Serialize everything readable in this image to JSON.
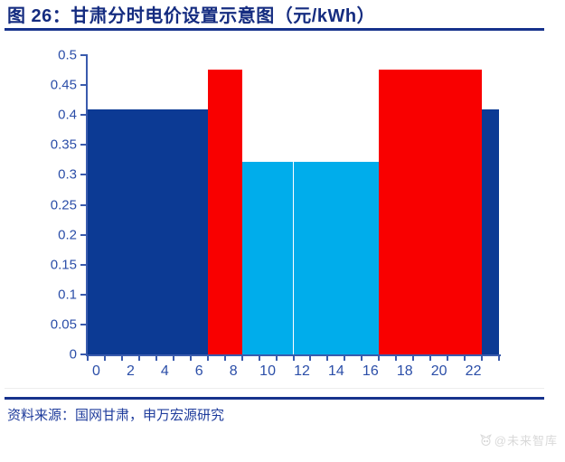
{
  "header": {
    "title": "图 26：甘肃分时电价设置示意图（元/kWh）"
  },
  "chart_data": {
    "type": "bar",
    "title": "甘肃分时电价设置示意图",
    "unit": "元/kWh",
    "x": [
      0,
      1,
      2,
      3,
      4,
      5,
      6,
      7,
      8,
      9,
      10,
      11,
      12,
      13,
      14,
      15,
      16,
      17,
      18,
      19,
      20,
      21,
      22,
      23
    ],
    "values": [
      0.41,
      0.41,
      0.41,
      0.41,
      0.41,
      0.41,
      0.41,
      0.476,
      0.476,
      0.322,
      0.322,
      0.322,
      0.322,
      0.322,
      0.322,
      0.322,
      0.322,
      0.476,
      0.476,
      0.476,
      0.476,
      0.476,
      0.476,
      0.41
    ],
    "colors": [
      "#0c3a94",
      "#0c3a94",
      "#0c3a94",
      "#0c3a94",
      "#0c3a94",
      "#0c3a94",
      "#0c3a94",
      "#f90000",
      "#f90000",
      "#00adeb",
      "#00adeb",
      "#00adeb",
      "#00adeb",
      "#00adeb",
      "#00adeb",
      "#00adeb",
      "#00adeb",
      "#f90000",
      "#f90000",
      "#f90000",
      "#f90000",
      "#f90000",
      "#f90000",
      "#0c3a94"
    ],
    "segments": [
      {
        "hours": "0-6",
        "value": 0.41,
        "color": "#0c3a94"
      },
      {
        "hours": "7-8",
        "value": 0.476,
        "color": "#f90000"
      },
      {
        "hours": "9-16",
        "value": 0.322,
        "color": "#00adeb"
      },
      {
        "hours": "17-22",
        "value": 0.476,
        "color": "#f90000"
      },
      {
        "hours": "23",
        "value": 0.41,
        "color": "#0c3a94"
      }
    ],
    "ylim": [
      0,
      0.5
    ],
    "ytick_labels": [
      "0",
      "0.05",
      "0.1",
      "0.15",
      "0.2",
      "0.25",
      "0.3",
      "0.35",
      "0.4",
      "0.45",
      "0.5"
    ],
    "xtick_labels": [
      0,
      2,
      4,
      6,
      8,
      10,
      12,
      14,
      16,
      18,
      20,
      22
    ],
    "bar_gap": 0,
    "grid": false,
    "legend": "none"
  },
  "footer": {
    "source": "资料来源：国网甘肃，申万宏源研究"
  },
  "watermark": {
    "text": "@未来智库"
  },
  "colors": {
    "title_text": "#152c80",
    "divider": "#16328c",
    "axis_line": "#3a5bad",
    "axis_text": "#2b4ea8",
    "source_text": "#1f3c9c",
    "watermark": "#d9d9d9",
    "bar_navy": "#0c3a94",
    "bar_red": "#f90000",
    "bar_cyan": "#00adeb"
  }
}
